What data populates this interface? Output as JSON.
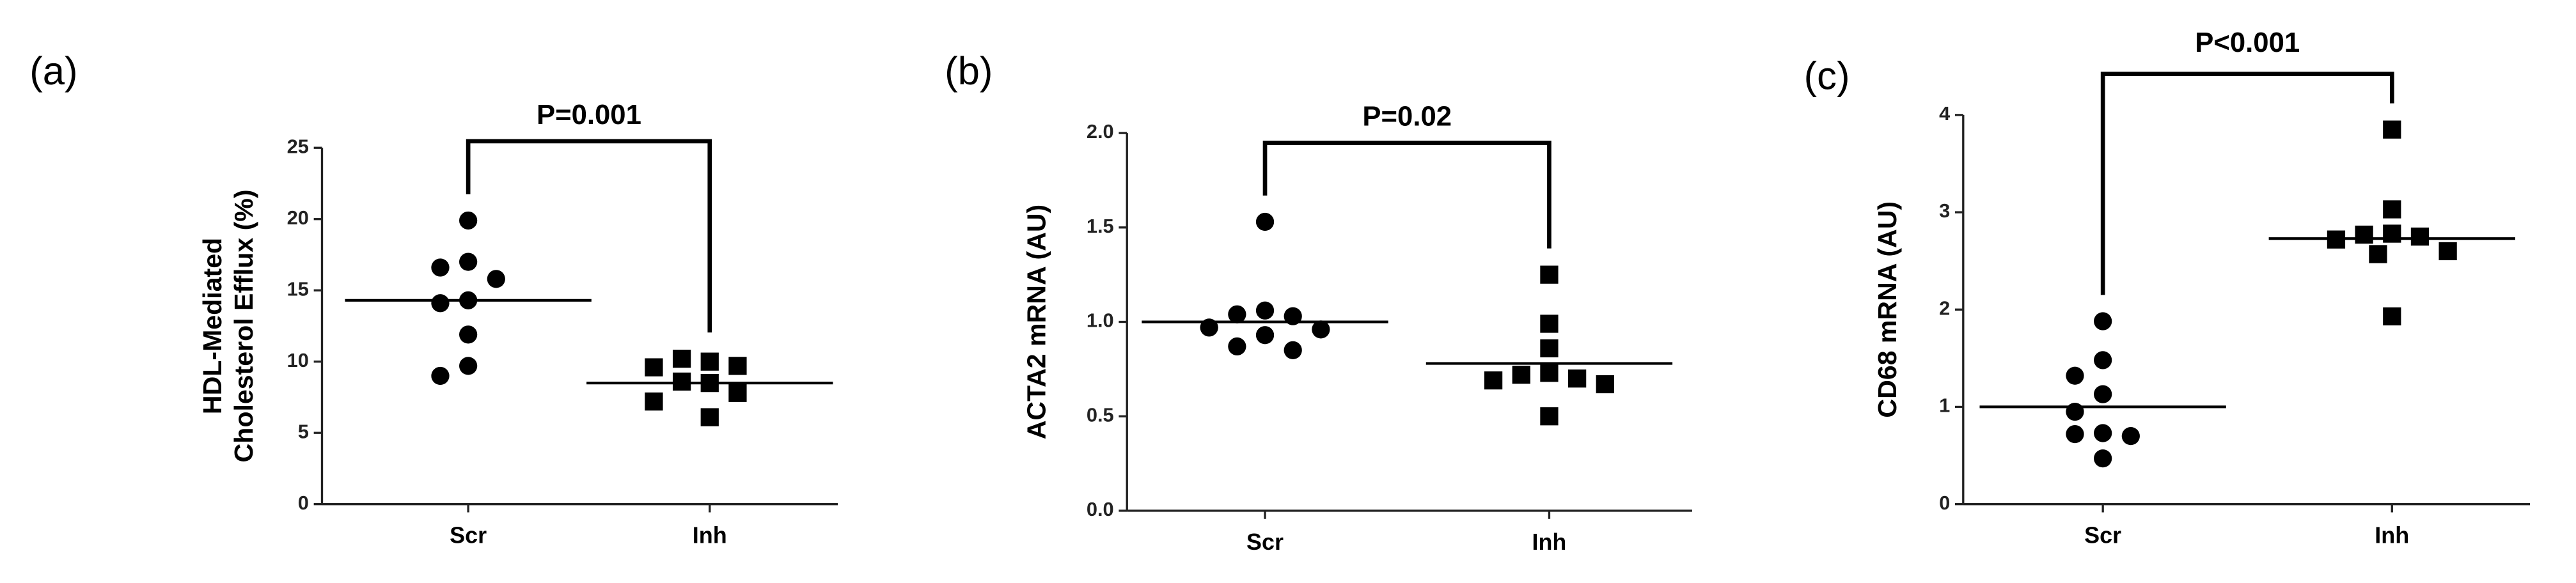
{
  "chart_data": [
    {
      "type": "dot",
      "panel_label": "(a)",
      "y_label": [
        "HDL-Mediated",
        "Cholesterol Efflux (%)"
      ],
      "categories": [
        "Scr",
        "Inh"
      ],
      "color": "#000000",
      "groups": [
        {
          "marker": "circle",
          "values": [
            19.9,
            17.0,
            16.6,
            15.8,
            14.3,
            14.1,
            11.9,
            9.7,
            9.0
          ],
          "center": 14.3
        },
        {
          "marker": "square",
          "values": [
            10.0,
            10.2,
            9.7,
            9.6,
            8.6,
            8.5,
            7.8,
            7.2,
            6.1
          ],
          "center": 8.5
        }
      ],
      "ylim": [
        0,
        25
      ],
      "yticks": [
        0,
        5,
        10,
        15,
        20,
        25
      ],
      "annotation": "P=0.001"
    },
    {
      "type": "dot",
      "panel_label": "(b)",
      "y_label": [
        "ACTA2 mRNA (AU)"
      ],
      "categories": [
        "Scr",
        "Inh"
      ],
      "color": "#000000",
      "groups": [
        {
          "marker": "circle",
          "values": [
            1.53,
            1.06,
            1.04,
            1.03,
            0.97,
            0.96,
            0.93,
            0.87,
            0.85
          ],
          "center": 1.0
        },
        {
          "marker": "square",
          "values": [
            1.25,
            0.99,
            0.86,
            0.73,
            0.72,
            0.7,
            0.69,
            0.67,
            0.5
          ],
          "center": 0.78
        }
      ],
      "ylim": [
        0,
        2
      ],
      "yticks": [
        {
          "value": 0,
          "label": "0.0"
        },
        {
          "value": 0.5,
          "label": "0.5"
        },
        {
          "value": 1,
          "label": "1.0"
        },
        {
          "value": 1.5,
          "label": "1.5"
        },
        {
          "value": 2,
          "label": "2.0"
        }
      ],
      "annotation": "P=0.02"
    },
    {
      "type": "dot",
      "panel_label": "(c)",
      "y_label": [
        "CD68 mRNA (AU)"
      ],
      "categories": [
        "Scr",
        "Inh"
      ],
      "color": "#000000",
      "groups": [
        {
          "marker": "circle",
          "values": [
            1.88,
            1.48,
            1.32,
            1.13,
            0.95,
            0.73,
            0.72,
            0.7,
            0.47
          ],
          "center": 1.0
        },
        {
          "marker": "square",
          "values": [
            3.85,
            3.03,
            2.78,
            2.77,
            2.75,
            2.72,
            2.6,
            2.57,
            1.93
          ],
          "center": 2.73
        }
      ],
      "ylim": [
        0,
        4
      ],
      "yticks": [
        0,
        1,
        2,
        3,
        4
      ],
      "annotation": "P<0.001"
    }
  ]
}
